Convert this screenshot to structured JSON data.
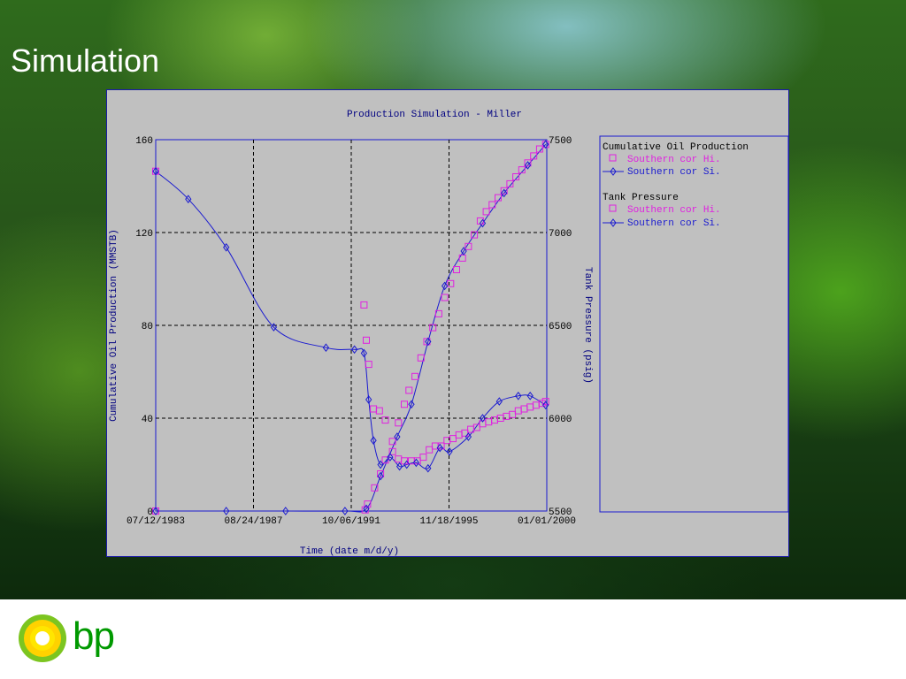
{
  "slide": {
    "title": "Simulation",
    "logo_text": "bp"
  },
  "colors": {
    "hi_series": "#e020e0",
    "si_series": "#1a1ad0",
    "plot_bg": "#c0c0c0",
    "title_text": "#000080"
  },
  "chart_data": {
    "type": "line",
    "title": "Production Simulation - Miller",
    "xlabel": "Time (date m/d/y)",
    "ylabel_left": "Cumulative Oil Production (MMSTB)",
    "ylabel_right": "Tank Pressure (psig)",
    "x_ticks": [
      "07/12/1983",
      "08/24/1987",
      "10/06/1991",
      "11/18/1995",
      "01/01/2000"
    ],
    "xlim": [
      1983.53,
      2000.0
    ],
    "y_left_ticks": [
      "0",
      "40",
      "80",
      "120",
      "160"
    ],
    "ylim_left": [
      0,
      160
    ],
    "y_right_ticks": [
      "5500",
      "6000",
      "6500",
      "7000",
      "7500"
    ],
    "ylim_right": [
      5500,
      7500
    ],
    "grid": true,
    "legend": {
      "position": "right",
      "groups": [
        {
          "heading": "Cumulative Oil Production",
          "entries": [
            {
              "label": "Southern cor Hi.",
              "marker": "square",
              "color": "#e020e0"
            },
            {
              "label": "Southern cor Si.",
              "marker": "diamond",
              "color": "#1a1ad0"
            }
          ]
        },
        {
          "heading": "Tank Pressure",
          "entries": [
            {
              "label": "Southern cor Hi.",
              "marker": "square",
              "color": "#e020e0"
            },
            {
              "label": "Southern cor Si.",
              "marker": "diamond",
              "color": "#1a1ad0"
            }
          ]
        }
      ]
    },
    "series": [
      {
        "name": "Southern cor Hi.",
        "group": "Cumulative Oil Production",
        "axis": "left",
        "marker": "square",
        "color": "#e020e0",
        "points": [
          [
            1983.53,
            0
          ],
          [
            1992.35,
            0.5
          ],
          [
            1992.45,
            3
          ],
          [
            1992.75,
            10
          ],
          [
            1993.0,
            16
          ],
          [
            1993.2,
            22
          ],
          [
            1993.5,
            30
          ],
          [
            1993.75,
            38
          ],
          [
            1994.0,
            46
          ],
          [
            1994.2,
            52
          ],
          [
            1994.45,
            58
          ],
          [
            1994.7,
            66
          ],
          [
            1994.95,
            73
          ],
          [
            1995.2,
            79
          ],
          [
            1995.45,
            85
          ],
          [
            1995.7,
            92
          ],
          [
            1995.95,
            98
          ],
          [
            1996.2,
            104
          ],
          [
            1996.45,
            109
          ],
          [
            1996.7,
            114
          ],
          [
            1996.95,
            119
          ],
          [
            1997.2,
            125
          ],
          [
            1997.45,
            129
          ],
          [
            1997.7,
            132
          ],
          [
            1997.95,
            135
          ],
          [
            1998.2,
            138
          ],
          [
            1998.45,
            141
          ],
          [
            1998.7,
            144
          ],
          [
            1998.95,
            147
          ],
          [
            1999.2,
            150
          ],
          [
            1999.45,
            153
          ],
          [
            1999.7,
            156
          ],
          [
            1999.95,
            158
          ]
        ]
      },
      {
        "name": "Southern cor Si.",
        "group": "Cumulative Oil Production",
        "axis": "left",
        "marker": "diamond",
        "color": "#1a1ad0",
        "points": [
          [
            1983.53,
            0
          ],
          [
            1986.5,
            0
          ],
          [
            1989.0,
            0
          ],
          [
            1991.5,
            0
          ],
          [
            1992.4,
            1
          ],
          [
            1993.0,
            15
          ],
          [
            1993.7,
            32
          ],
          [
            1994.3,
            46
          ],
          [
            1995.0,
            73
          ],
          [
            1995.7,
            97
          ],
          [
            1996.5,
            112
          ],
          [
            1997.3,
            124
          ],
          [
            1998.2,
            137
          ],
          [
            1999.2,
            149
          ],
          [
            1999.95,
            158
          ]
        ]
      },
      {
        "name": "Southern cor Hi.",
        "group": "Tank Pressure",
        "axis": "right",
        "marker": "square",
        "color": "#e020e0",
        "points": [
          [
            1983.53,
            7330
          ],
          [
            1992.3,
            6610
          ],
          [
            1992.4,
            6420
          ],
          [
            1992.5,
            6290
          ],
          [
            1992.7,
            6050
          ],
          [
            1992.95,
            6040
          ],
          [
            1993.2,
            5990
          ],
          [
            1993.5,
            5820
          ],
          [
            1993.75,
            5780
          ],
          [
            1994.0,
            5770
          ],
          [
            1994.3,
            5770
          ],
          [
            1994.55,
            5770
          ],
          [
            1994.8,
            5790
          ],
          [
            1995.05,
            5830
          ],
          [
            1995.3,
            5850
          ],
          [
            1995.55,
            5850
          ],
          [
            1995.8,
            5880
          ],
          [
            1996.05,
            5890
          ],
          [
            1996.3,
            5910
          ],
          [
            1996.55,
            5920
          ],
          [
            1996.8,
            5940
          ],
          [
            1997.05,
            5950
          ],
          [
            1997.3,
            5970
          ],
          [
            1997.55,
            5980
          ],
          [
            1997.8,
            5990
          ],
          [
            1998.05,
            6000
          ],
          [
            1998.3,
            6010
          ],
          [
            1998.55,
            6020
          ],
          [
            1998.8,
            6040
          ],
          [
            1999.05,
            6050
          ],
          [
            1999.3,
            6060
          ],
          [
            1999.55,
            6070
          ],
          [
            1999.8,
            6080
          ],
          [
            1999.95,
            6090
          ]
        ]
      },
      {
        "name": "Southern cor Si.",
        "group": "Tank Pressure",
        "axis": "right",
        "marker": "diamond",
        "color": "#1a1ad0",
        "points": [
          [
            1983.53,
            7330
          ],
          [
            1984.9,
            7180
          ],
          [
            1986.5,
            6920
          ],
          [
            1988.5,
            6490
          ],
          [
            1990.7,
            6380
          ],
          [
            1991.9,
            6370
          ],
          [
            1992.3,
            6350
          ],
          [
            1992.5,
            6100
          ],
          [
            1992.7,
            5880
          ],
          [
            1993.0,
            5750
          ],
          [
            1993.4,
            5790
          ],
          [
            1993.8,
            5740
          ],
          [
            1994.1,
            5750
          ],
          [
            1994.5,
            5760
          ],
          [
            1995.0,
            5730
          ],
          [
            1995.5,
            5840
          ],
          [
            1995.9,
            5820
          ],
          [
            1996.7,
            5900
          ],
          [
            1997.3,
            6000
          ],
          [
            1998.0,
            6090
          ],
          [
            1998.8,
            6120
          ],
          [
            1999.3,
            6120
          ],
          [
            1999.95,
            6070
          ]
        ]
      }
    ]
  }
}
